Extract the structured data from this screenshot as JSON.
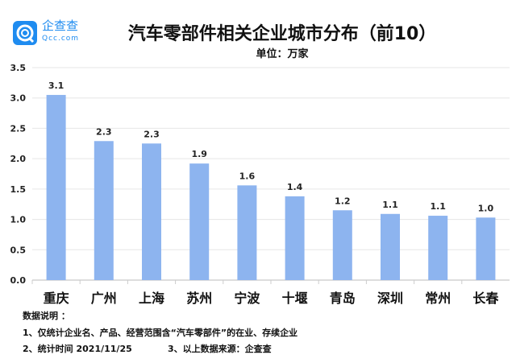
{
  "logo": {
    "name": "企查查",
    "domain": "Qcc.com"
  },
  "chart_data": {
    "type": "bar",
    "title": "汽车零部件相关企业城市分布（前10）",
    "unit_label": "单位：万家",
    "categories": [
      "重庆",
      "广州",
      "上海",
      "苏州",
      "宁波",
      "十堰",
      "青岛",
      "深圳",
      "常州",
      "长春"
    ],
    "values": [
      3.05,
      2.29,
      2.25,
      1.92,
      1.56,
      1.38,
      1.15,
      1.09,
      1.06,
      1.03
    ],
    "data_labels": [
      "3.1",
      "2.3",
      "2.3",
      "1.9",
      "1.6",
      "1.4",
      "1.2",
      "1.1",
      "1.1",
      "1.0"
    ],
    "ylim": [
      0,
      3.5
    ],
    "yticks": [
      "0.0",
      "0.5",
      "1.0",
      "1.5",
      "2.0",
      "2.5",
      "3.0",
      "3.5"
    ],
    "grid": true,
    "bar_color": "#8db4ef"
  },
  "notes": {
    "heading": "数据说明 ：",
    "line1": "1、仅统计企业名、产品、经营范围含“汽车零部件”的在业、存续企业",
    "line2a": "2、统计时间  2021/11/25",
    "line2b": "3、以上数据来源：企查查"
  }
}
